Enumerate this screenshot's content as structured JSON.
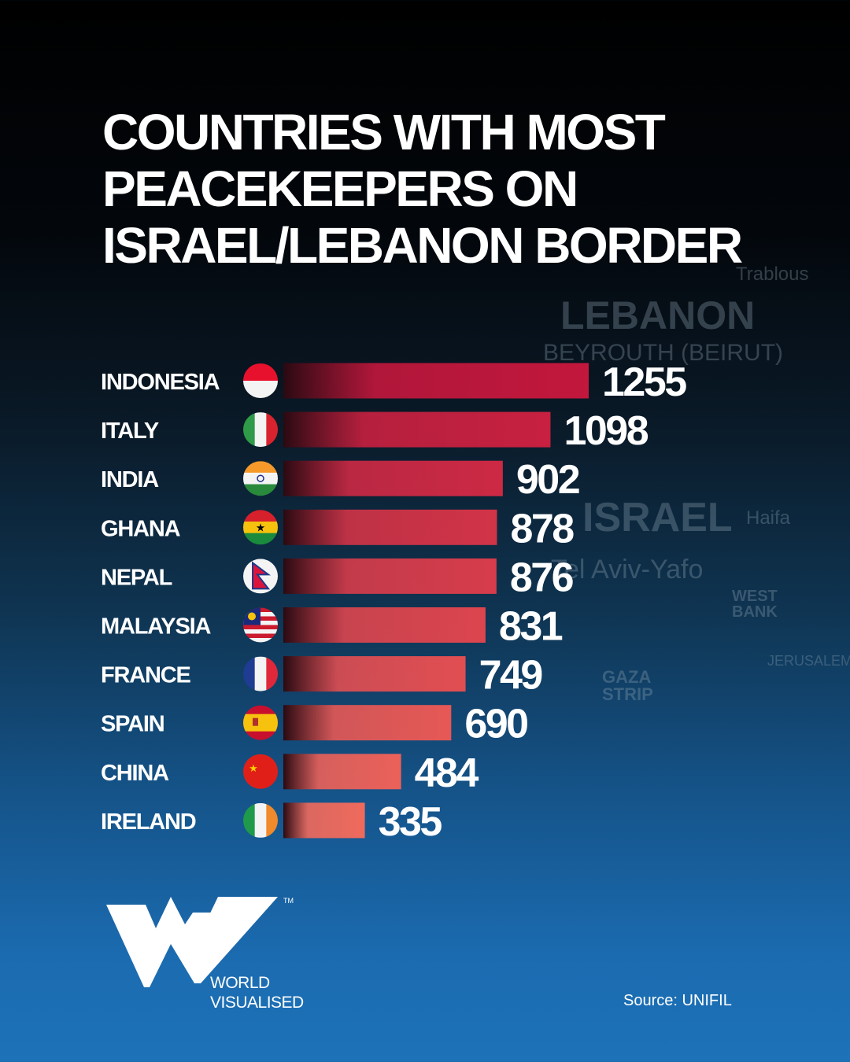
{
  "title_lines": [
    "COUNTRIES WITH MOST",
    "PEACEKEEPERS ON",
    "ISRAEL/LEBANON BORDER"
  ],
  "map_labels": [
    "Trablous",
    "LEBANON",
    "BEYROUTH (BEIRUT)",
    "ISRAEL",
    "Haifa",
    "Tel Aviv-Yafo",
    "WEST BANK",
    "GAZA STRIP",
    "JERUSALEM"
  ],
  "chart_data": {
    "type": "bar",
    "orientation": "horizontal",
    "title": "COUNTRIES WITH MOST PEACEKEEPERS ON ISRAEL/LEBANON BORDER",
    "categories": [
      "INDONESIA",
      "ITALY",
      "INDIA",
      "GHANA",
      "NEPAL",
      "MALAYSIA",
      "FRANCE",
      "SPAIN",
      "CHINA",
      "IRELAND"
    ],
    "values": [
      1255,
      1098,
      902,
      878,
      876,
      831,
      749,
      690,
      484,
      335
    ],
    "flags": [
      "indonesia-flag",
      "italy-flag",
      "india-flag",
      "ghana-flag",
      "nepal-flag",
      "malaysia-flag",
      "france-flag",
      "spain-flag",
      "china-flag",
      "ireland-flag"
    ],
    "bar_color_top": "#c3173d",
    "bar_color_bottom": "#f06a5c",
    "grid": false,
    "data_labels": true
  },
  "brand": {
    "line1": "WORLD",
    "line2": "VISUALISED",
    "tm": "TM"
  },
  "source": "Source: UNIFIL"
}
